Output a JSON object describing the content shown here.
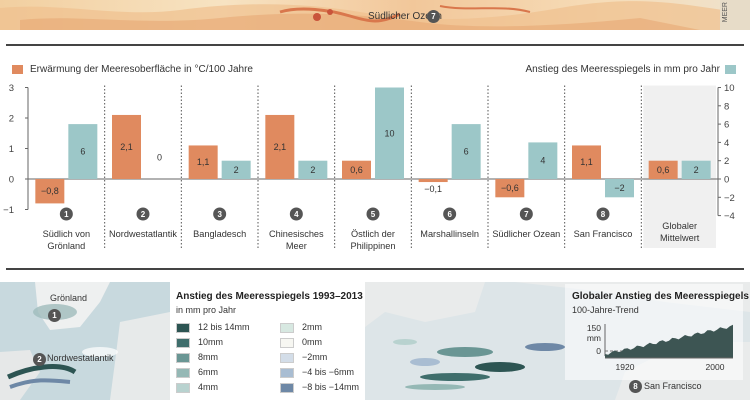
{
  "top": {
    "label": "Südlicher Ozean",
    "marker": "7",
    "side_text": "MEER"
  },
  "chart_data": {
    "type": "bar",
    "left_legend": "Erwärmung der Meeresoberfläche in °C/100 Jahre",
    "right_legend": "Anstieg des Meeresspiegels in mm pro Jahr",
    "left_axis": {
      "min": -1,
      "max": 3,
      "ticks": [
        -1,
        0,
        1,
        2,
        3
      ]
    },
    "right_axis": {
      "min": -4,
      "max": 10,
      "ticks": [
        -4,
        -2,
        0,
        2,
        4,
        6,
        8,
        10
      ]
    },
    "colors": {
      "temperature": "#e08a5f",
      "sea_level": "#9cc7c8"
    },
    "categories": [
      {
        "num": "1",
        "name": "Südlich von Grönland",
        "temp": -0.8,
        "temp_label": "−0,8",
        "sea": 6,
        "sea_label": "6"
      },
      {
        "num": "2",
        "name": "Nordwestatlantik",
        "temp": 2.1,
        "temp_label": "2,1",
        "sea": 0,
        "sea_label": "0"
      },
      {
        "num": "3",
        "name": "Bangladesch",
        "temp": 1.1,
        "temp_label": "1,1",
        "sea": 2,
        "sea_label": "2"
      },
      {
        "num": "4",
        "name": "Chinesisches Meer",
        "temp": 2.1,
        "temp_label": "2,1",
        "sea": 2,
        "sea_label": "2"
      },
      {
        "num": "5",
        "name": "Östlich der Philippinen",
        "temp": 0.6,
        "temp_label": "0,6",
        "sea": 10,
        "sea_label": "10"
      },
      {
        "num": "6",
        "name": "Marshallinseln",
        "temp": -0.1,
        "temp_label": "−0,1",
        "sea": 6,
        "sea_label": "6"
      },
      {
        "num": "7",
        "name": "Südlicher Ozean",
        "temp": -0.6,
        "temp_label": "−0,6",
        "sea": 4,
        "sea_label": "4"
      },
      {
        "num": "8",
        "name": "San Francisco",
        "temp": 1.1,
        "temp_label": "1,1",
        "sea": -2,
        "sea_label": "−2"
      },
      {
        "num": "",
        "name": "Globaler Mittelwert",
        "temp": 0.6,
        "temp_label": "0,6",
        "sea": 2,
        "sea_label": "2"
      }
    ]
  },
  "bottom": {
    "left_map": {
      "label_greenland": "Grönland",
      "marker1": "1",
      "label_nwa": "Nordwestatlantik",
      "marker2": "2"
    },
    "legend": {
      "title": "Anstieg des Meeresspiegels 1993–2013",
      "subtitle": "in mm pro Jahr",
      "left_items": [
        {
          "label": "12 bis 14mm",
          "color": "#2d5553"
        },
        {
          "label": "10mm",
          "color": "#3f6e6c"
        },
        {
          "label": "8mm",
          "color": "#6a9694"
        },
        {
          "label": "6mm",
          "color": "#95b8b5"
        },
        {
          "label": "4mm",
          "color": "#b8d2cf"
        }
      ],
      "right_items": [
        {
          "label": "2mm",
          "color": "#d7e8e1"
        },
        {
          "label": "0mm",
          "color": "#f7f7f2"
        },
        {
          "label": "−2mm",
          "color": "#d3dde8"
        },
        {
          "label": "−4 bis −6mm",
          "color": "#a9bdd2"
        },
        {
          "label": "−8 bis −14mm",
          "color": "#6e88a6"
        }
      ]
    },
    "inset": {
      "title": "Globaler Anstieg des Meeresspiegels",
      "subtitle": "100-Jahre-Trend",
      "y_ticks": [
        "150",
        "0"
      ],
      "y_unit": "mm",
      "x_ticks": [
        "1920",
        "2000"
      ],
      "marker8": "8",
      "label_sf": "San Francisco"
    }
  }
}
